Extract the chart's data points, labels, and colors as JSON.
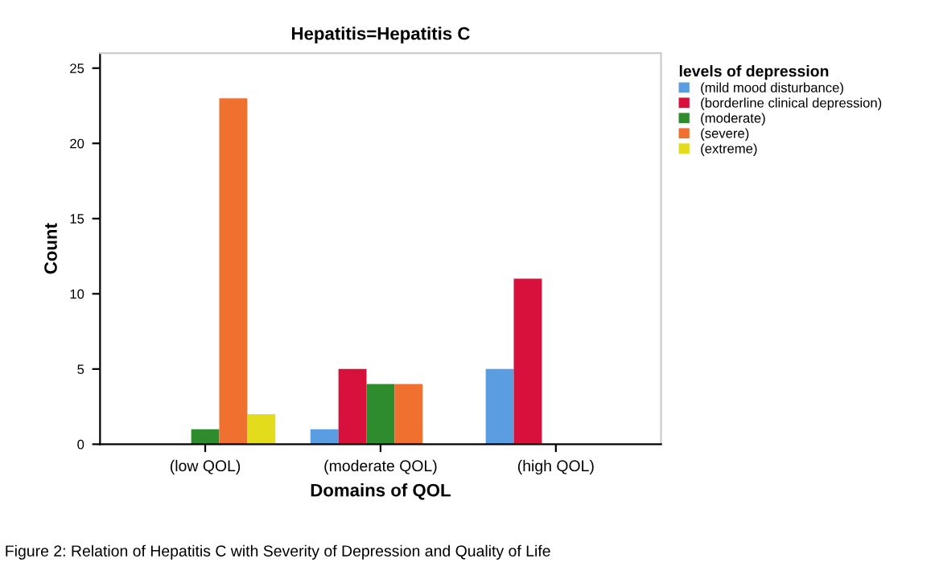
{
  "chart_data": {
    "type": "bar",
    "title": "Hepatitis=Hepatitis C",
    "xlabel": "Domains of QOL",
    "ylabel": "Count",
    "legend_title": "levels of depression",
    "categories": [
      "(low QOL)",
      "(moderate QOL)",
      "(high QOL)"
    ],
    "series": [
      {
        "name": "(mild mood disturbance)",
        "color": "#5a9de0",
        "values": [
          0,
          1,
          5
        ]
      },
      {
        "name": "(borderline clinical depression)",
        "color": "#d8103c",
        "values": [
          0,
          5,
          11
        ]
      },
      {
        "name": "(moderate)",
        "color": "#2e8b2e",
        "values": [
          1,
          4,
          0
        ]
      },
      {
        "name": "(severe)",
        "color": "#f07030",
        "values": [
          23,
          4,
          0
        ]
      },
      {
        "name": "(extreme)",
        "color": "#e3dc1c",
        "values": [
          2,
          0,
          0
        ]
      }
    ],
    "ylim": [
      0,
      26
    ],
    "yticks": [
      0,
      5,
      10,
      15,
      20,
      25
    ],
    "grid": false,
    "legend": "right",
    "annotations": [
      "Figure 2: Relation of Hepatitis C with Severity of Depression and Quality of Life"
    ]
  }
}
